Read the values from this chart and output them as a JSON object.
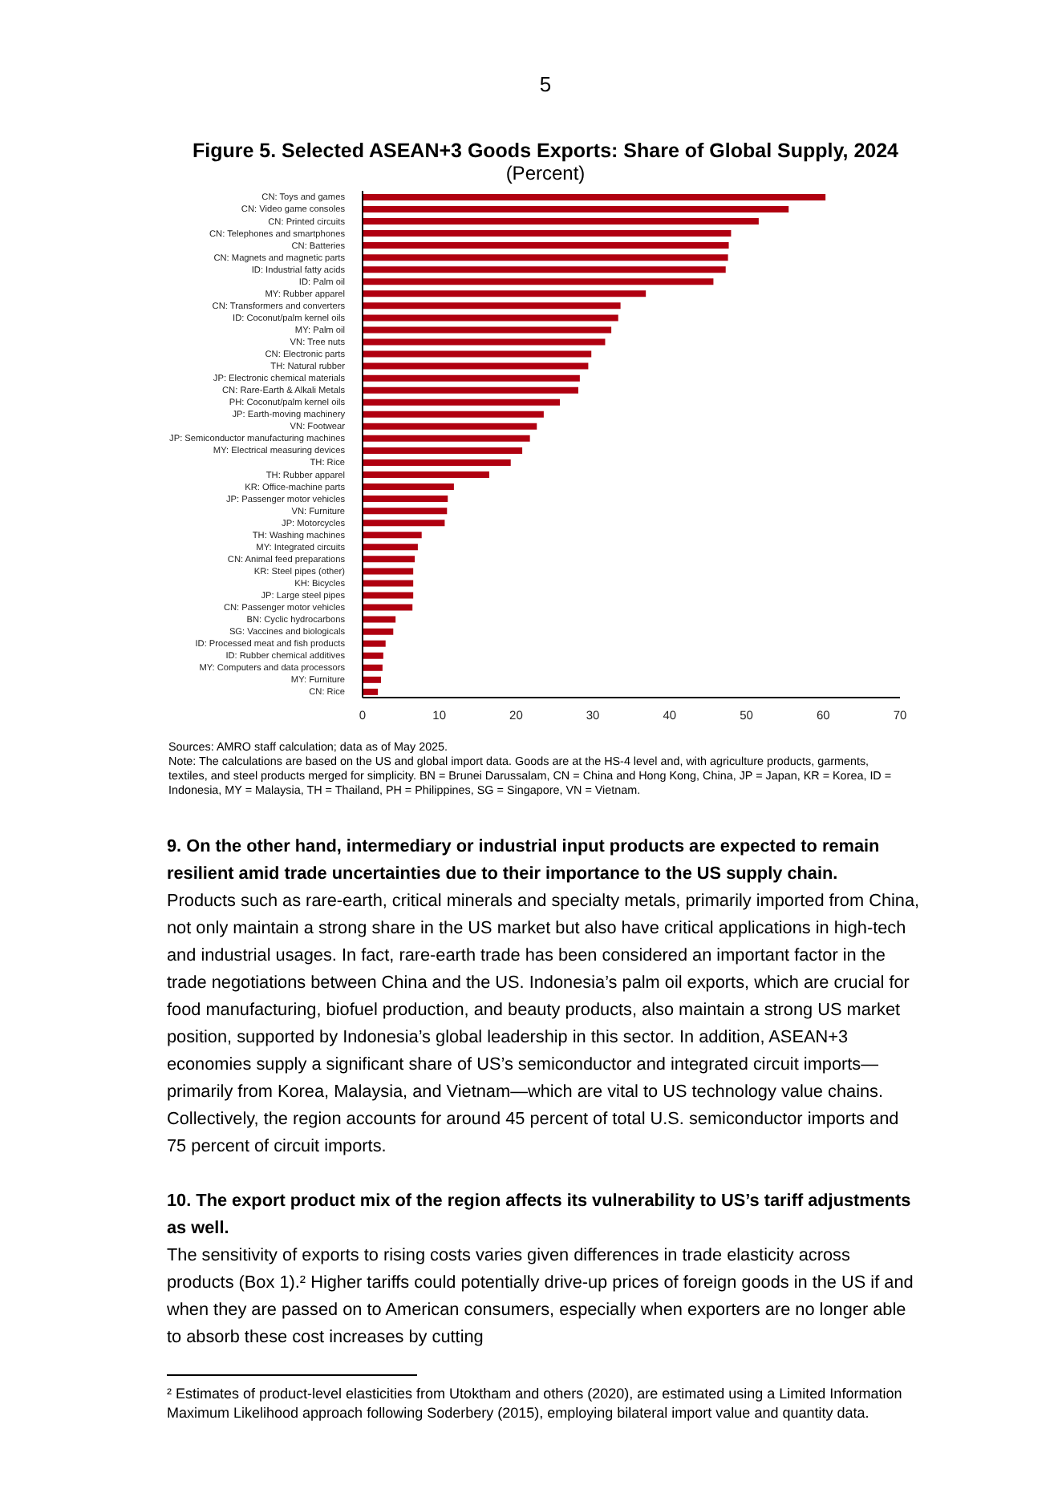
{
  "chart_data": {
    "type": "bar",
    "orientation": "horizontal",
    "title": "Figure 5. Selected ASEAN+3 Goods Exports: Share of Global Supply, 2024",
    "subtitle": "(Percent)",
    "categories": [
      "CN: Toys and games",
      "CN: Video game consoles",
      "CN: Printed circuits",
      "CN: Telephones and smartphones",
      "CN: Batteries",
      "CN: Magnets and magnetic parts",
      "ID: Industrial fatty acids",
      "ID: Palm oil",
      "MY: Rubber apparel",
      "CN: Transformers and converters",
      "ID: Coconut/palm kernel oils",
      "MY: Palm oil",
      "VN: Tree nuts",
      "CN: Electronic parts",
      "TH: Natural rubber",
      "JP: Electronic chemical materials",
      "CN: Rare-Earth & Alkali Metals",
      "PH: Coconut/palm kernel oils",
      "JP: Earth-moving machinery",
      "VN: Footwear",
      "JP: Semiconductor manufacturing machines",
      "MY: Electrical measuring devices",
      "TH: Rice",
      "TH: Rubber apparel",
      "KR: Office-machine parts",
      "JP: Passenger motor vehicles",
      "VN: Furniture",
      "JP: Motorcycles",
      "TH: Washing machines",
      "MY: Integrated circuits",
      "CN: Animal feed preparations",
      "KR: Steel pipes (other)",
      "KH: Bicycles",
      "JP: Large steel pipes",
      "CN: Passenger motor vehicles",
      "BN: Cyclic hydrocarbons",
      "SG: Vaccines and biologicals",
      "ID: Processed meat and fish products",
      "ID: Rubber chemical additives",
      "MY: Computers and data processors",
      "MY: Furniture",
      "CN: Rice"
    ],
    "values": [
      60.3,
      55.5,
      51.6,
      48.0,
      47.7,
      47.6,
      47.3,
      45.7,
      36.9,
      33.6,
      33.3,
      32.4,
      31.6,
      29.8,
      29.4,
      28.3,
      28.1,
      25.7,
      23.6,
      22.7,
      21.8,
      20.8,
      19.3,
      16.5,
      11.9,
      11.1,
      11.0,
      10.7,
      7.7,
      7.2,
      6.8,
      6.6,
      6.6,
      6.6,
      6.5,
      4.3,
      4.0,
      3.0,
      2.7,
      2.6,
      2.4,
      2.0
    ],
    "color": "#b00010",
    "xlim": [
      0,
      70
    ],
    "xticks": [
      0,
      10,
      20,
      30,
      40,
      50,
      60,
      70
    ],
    "grid": false,
    "legend": false,
    "annotations": [
      "5",
      "Sources: AMRO staff calculation; data as of May 2025.",
      "Note: The calculations are based on the US and global import data. Goods are at the HS-4 level and, with agriculture products, garments, textiles, and steel products merged for simplicity. BN = Brunei Darussalam, CN = China and Hong Kong, China, JP = Japan, KR = Korea, ID = Indonesia, MY = Malaysia, TH = Thailand, PH = Philippines, SG = Singapore, VN = Vietnam.",
      "9. On the other hand, intermediary or industrial input products are expected to remain resilient amid trade uncertainties due to their importance to the US supply chain.",
      "Products such as rare-earth, critical minerals and specialty metals, primarily imported from China, not only maintain a strong share in the US market but also have critical applications in high-tech and industrial usages. In fact, rare-earth trade has been considered an important factor in the trade negotiations between China and the US. Indonesia’s palm oil exports, which are crucial for food manufacturing, biofuel production, and beauty products, also maintain a strong US market position, supported by Indonesia’s global leadership in this sector. In addition, ASEAN+3 economies supply a significant share of US’s semiconductor and integrated circuit imports—primarily from Korea, Malaysia, and Vietnam—which are vital to US technology value chains. Collectively, the region accounts for around 45 percent of total U.S. semiconductor imports and 75 percent of circuit imports.",
      "10. The export product mix of the region affects its vulnerability to US’s tariff adjustments as well.",
      "The sensitivity of exports to rising costs varies given differences in trade elasticity across products (Box 1).² Higher tariffs could potentially drive-up prices of foreign goods in the US if and when they are passed on to American consumers, especially when exporters are no longer able to absorb these cost increases by cutting",
      "² Estimates of product-level elasticities from Utoktham and others (2020), are estimated using a Limited Information Maximum Likelihood approach following Soderbery (2015), employing bilateral import value and quantity data."
    ]
  }
}
